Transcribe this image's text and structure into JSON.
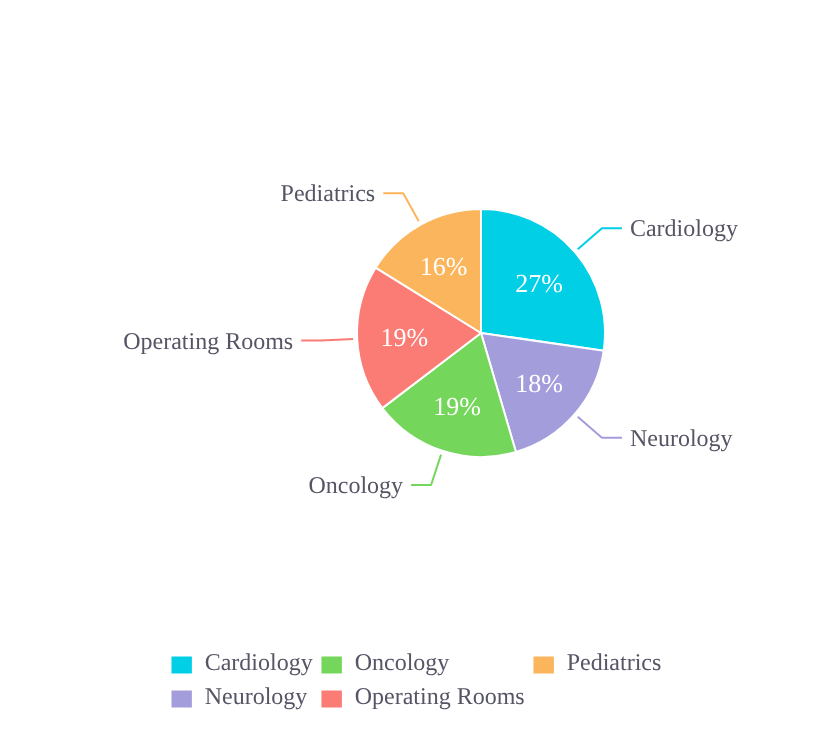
{
  "chart_data": {
    "type": "pie",
    "categories": [
      "Cardiology",
      "Neurology",
      "Oncology",
      "Operating Rooms",
      "Pediatrics"
    ],
    "values": [
      27,
      18,
      19,
      19,
      16
    ],
    "value_labels": [
      "27%",
      "18%",
      "19%",
      "19%",
      "16%"
    ],
    "colors": [
      "#00cfe6",
      "#a39ddb",
      "#74d65b",
      "#fb7b75",
      "#fbb55c"
    ],
    "legend": "bottom"
  }
}
